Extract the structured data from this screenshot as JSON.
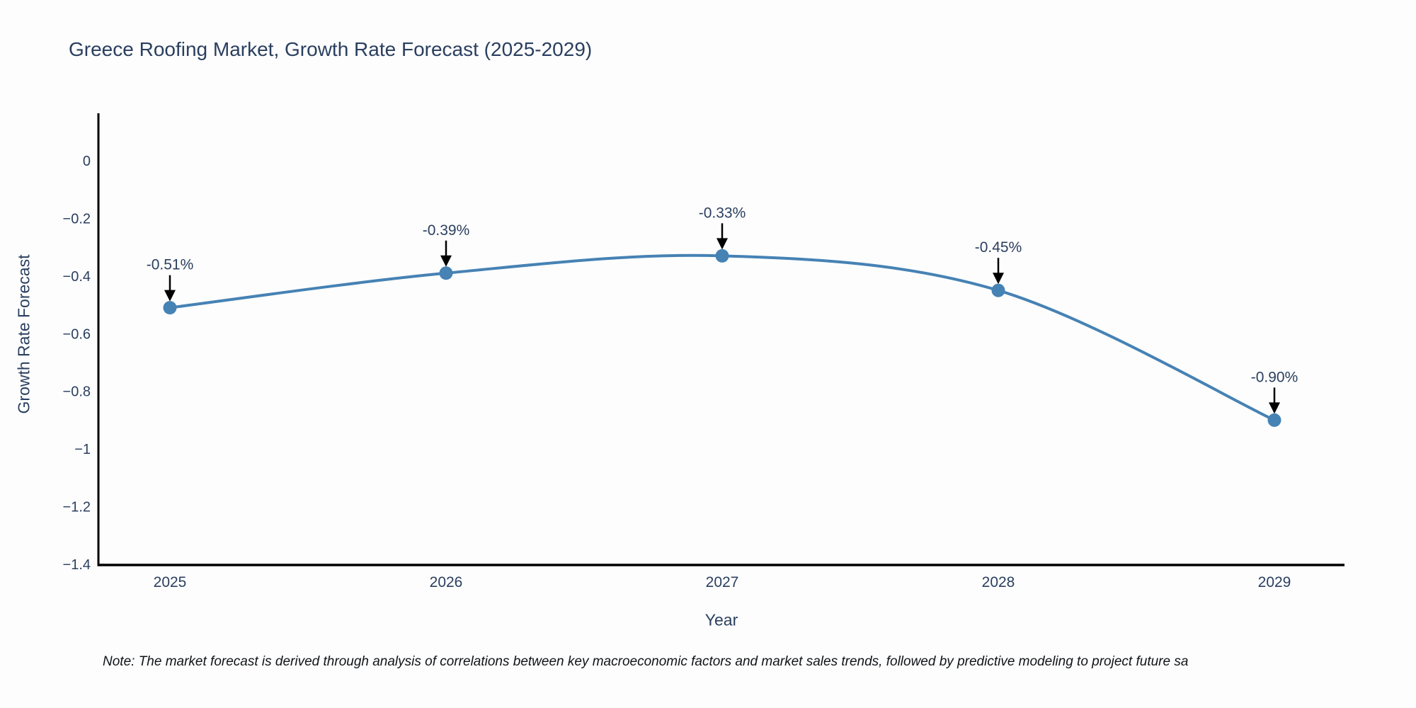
{
  "title": "Greece Roofing Market, Growth Rate Forecast (2025-2029)",
  "note": "Note: The market forecast is derived through analysis of correlations between key macroeconomic factors and market sales trends, followed by predictive modeling to project future sa",
  "chart_data": {
    "type": "line",
    "title": "Greece Roofing Market, Growth Rate Forecast (2025-2029)",
    "xlabel": "Year",
    "ylabel": "Growth Rate Forecast",
    "categories": [
      2025,
      2026,
      2027,
      2028,
      2029
    ],
    "series": [
      {
        "name": "Growth Rate Forecast",
        "values": [
          -0.51,
          -0.39,
          -0.33,
          -0.45,
          -0.9
        ]
      }
    ],
    "point_labels": [
      "-0.51%",
      "-0.39%",
      "-0.33%",
      "-0.45%",
      "-0.90%"
    ],
    "yticks": [
      0,
      -0.2,
      -0.4,
      -0.6,
      -0.8,
      -1,
      -1.2,
      -1.4
    ],
    "ytick_labels": [
      "0",
      "−0.2",
      "−0.4",
      "−0.6",
      "−0.8",
      "−1",
      "−1.2",
      "−1.4"
    ],
    "ylim": [
      -1.4,
      0.16
    ],
    "grid": false,
    "legend_position": "none",
    "line_color": "#4682b4",
    "marker_color": "#4682b4",
    "arrow_color": "#000000",
    "axis_color": "#000000",
    "text_color": "#2a3f5f"
  }
}
